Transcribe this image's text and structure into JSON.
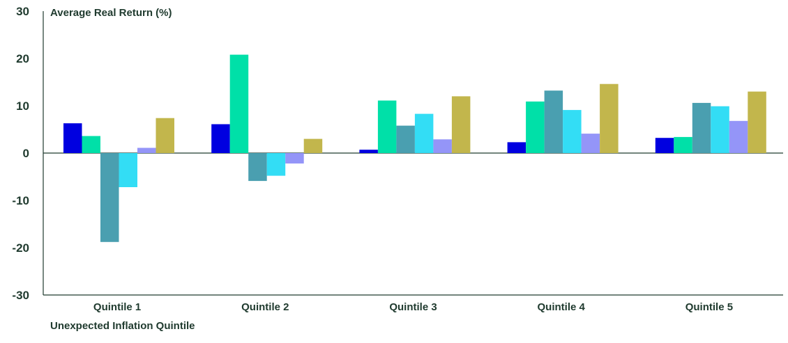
{
  "chart_data": {
    "type": "bar",
    "title": "Average Real Return (%)",
    "xlabel": "Unexpected Inflation Quintile",
    "ylabel": "Average Real Return (%)",
    "ylim": [
      -30,
      30
    ],
    "yticks": [
      30,
      20,
      10,
      0,
      -10,
      -20,
      -30
    ],
    "ytick_labels": [
      "30",
      "20",
      "10",
      "0",
      "-10",
      "-20",
      "-30"
    ],
    "categories": [
      "Quintile 1",
      "Quintile 2",
      "Quintile 3",
      "Quintile 4",
      "Quintile 5"
    ],
    "legend": "none",
    "grid": false,
    "colors": [
      "#0000e0",
      "#00e0a8",
      "#4a9fb0",
      "#33ddf5",
      "#9495f8",
      "#c2b64c"
    ],
    "series": [
      {
        "values": [
          6.3,
          6.1,
          0.7,
          2.3,
          3.2
        ]
      },
      {
        "values": [
          3.6,
          20.8,
          11.1,
          10.9,
          3.4
        ]
      },
      {
        "values": [
          -18.8,
          -5.9,
          5.8,
          13.2,
          10.6
        ]
      },
      {
        "values": [
          -7.2,
          -4.8,
          8.3,
          9.1,
          9.9
        ]
      },
      {
        "values": [
          1.1,
          -2.2,
          2.9,
          4.1,
          6.8
        ]
      },
      {
        "values": [
          7.4,
          3.0,
          12.0,
          14.6,
          13.0
        ]
      }
    ]
  }
}
